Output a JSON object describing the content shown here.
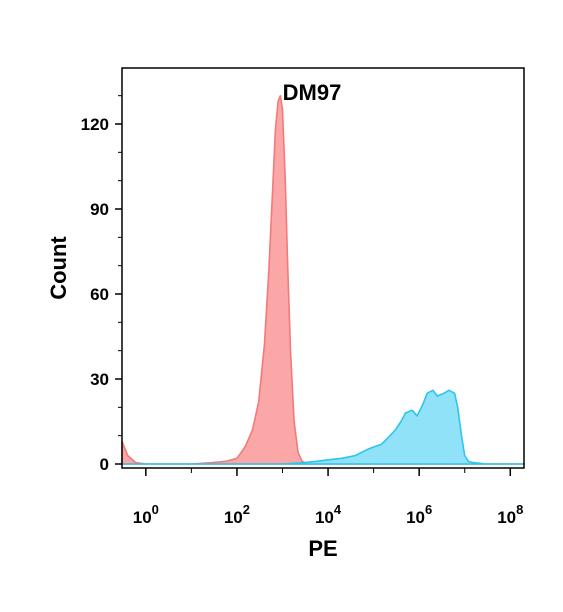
{
  "chart_data": {
    "type": "area",
    "title": "",
    "xlabel": "PE",
    "ylabel": "Count",
    "x_scale": "log",
    "xlim": [
      0.3,
      200000000
    ],
    "ylim": [
      0,
      135
    ],
    "x_ticks": [
      {
        "value": 1,
        "base": "10",
        "exp": "0"
      },
      {
        "value": 100,
        "base": "10",
        "exp": "2"
      },
      {
        "value": 10000,
        "base": "10",
        "exp": "4"
      },
      {
        "value": 1000000,
        "base": "10",
        "exp": "6"
      },
      {
        "value": 100000000,
        "base": "10",
        "exp": "8"
      }
    ],
    "y_ticks": [
      0,
      30,
      60,
      90,
      120
    ],
    "grid": false,
    "annotations": [
      {
        "text": "DM97",
        "x": 1000,
        "y": 130
      }
    ],
    "series": [
      {
        "color": "#f47a7a",
        "fill": "#fba7a7",
        "x": [
          0.3,
          0.4,
          0.6,
          1,
          10,
          30,
          60,
          100,
          150,
          220,
          300,
          400,
          500,
          600,
          700,
          800,
          900,
          1000,
          1150,
          1300,
          1500,
          1800,
          2200,
          2700,
          3500,
          10000,
          200000000
        ],
        "y": [
          8,
          3,
          0.5,
          0,
          0,
          0.5,
          1,
          2,
          6,
          12,
          22,
          42,
          68,
          95,
          118,
          128,
          130,
          125,
          100,
          70,
          40,
          15,
          4,
          1,
          0,
          0,
          0
        ]
      },
      {
        "color": "#2fc4ee",
        "fill": "#8fe2f8",
        "x": [
          0.3,
          1000,
          3000,
          6000,
          10000,
          20000,
          40000,
          70000,
          100000,
          150000,
          200000,
          300000,
          400000,
          500000,
          700000,
          900000,
          1200000,
          1500000,
          2000000,
          2500000,
          3500000,
          4500000,
          6000000,
          7000000,
          8500000,
          10000000,
          12000000,
          15000000,
          30000000,
          200000000
        ],
        "y": [
          0,
          0,
          0.5,
          1,
          1.5,
          2,
          3,
          5,
          6,
          7,
          9,
          12,
          15,
          18,
          19,
          17,
          21,
          25,
          26,
          24,
          25,
          26,
          25,
          20,
          10,
          3,
          1,
          0.5,
          0,
          0
        ]
      }
    ]
  }
}
